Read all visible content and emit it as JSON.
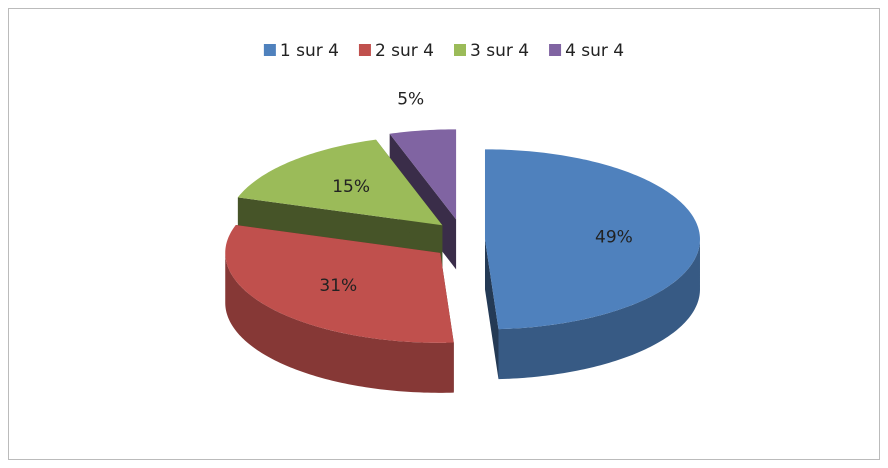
{
  "chart_data": {
    "type": "pie",
    "categories": [
      "1 sur 4",
      "2 sur 4",
      "3 sur 4",
      "4 sur 4"
    ],
    "values": [
      49,
      31,
      15,
      5
    ],
    "value_labels": [
      "49%",
      "31%",
      "15%",
      "5%"
    ],
    "colors": [
      "#4f81bd",
      "#c0504d",
      "#9bbb59",
      "#8064a2"
    ],
    "legend": "top"
  }
}
